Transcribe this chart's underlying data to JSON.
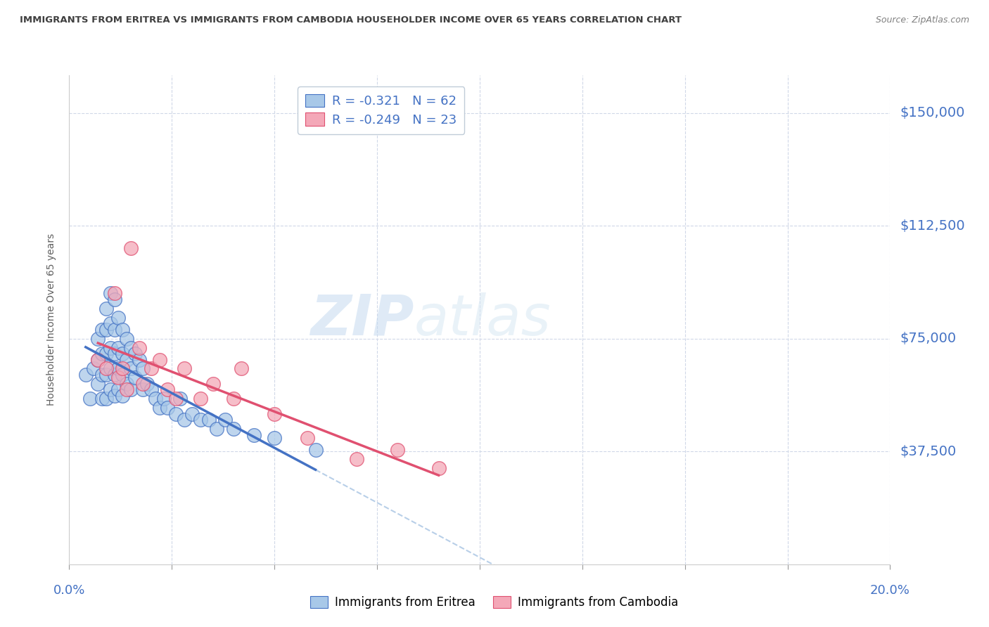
{
  "title": "IMMIGRANTS FROM ERITREA VS IMMIGRANTS FROM CAMBODIA HOUSEHOLDER INCOME OVER 65 YEARS CORRELATION CHART",
  "source": "Source: ZipAtlas.com",
  "ylabel": "Householder Income Over 65 years",
  "ytick_labels": [
    "$37,500",
    "$75,000",
    "$112,500",
    "$150,000"
  ],
  "ytick_values": [
    37500,
    75000,
    112500,
    150000
  ],
  "ymin": 0,
  "ymax": 162500,
  "xmin": 0.0,
  "xmax": 0.2,
  "legend1_text": "R = -0.321   N = 62",
  "legend2_text": "R = -0.249   N = 23",
  "color_eritrea": "#a8c8e8",
  "color_cambodia": "#f4a8b8",
  "color_trend_eritrea": "#4472c4",
  "color_trend_cambodia": "#e05070",
  "color_trend_dashed": "#b8cfe8",
  "watermark": "ZIPatlas",
  "title_color": "#404040",
  "axis_label_color": "#4472c4",
  "eritrea_points_x": [
    0.004,
    0.005,
    0.006,
    0.007,
    0.007,
    0.007,
    0.008,
    0.008,
    0.008,
    0.008,
    0.009,
    0.009,
    0.009,
    0.009,
    0.009,
    0.01,
    0.01,
    0.01,
    0.01,
    0.01,
    0.011,
    0.011,
    0.011,
    0.011,
    0.011,
    0.012,
    0.012,
    0.012,
    0.012,
    0.013,
    0.013,
    0.013,
    0.013,
    0.014,
    0.014,
    0.014,
    0.015,
    0.015,
    0.015,
    0.016,
    0.016,
    0.017,
    0.018,
    0.018,
    0.019,
    0.02,
    0.021,
    0.022,
    0.023,
    0.024,
    0.026,
    0.027,
    0.028,
    0.03,
    0.032,
    0.034,
    0.036,
    0.038,
    0.04,
    0.045,
    0.05,
    0.06
  ],
  "eritrea_points_y": [
    63000,
    55000,
    65000,
    75000,
    68000,
    60000,
    78000,
    70000,
    63000,
    55000,
    85000,
    78000,
    70000,
    63000,
    55000,
    90000,
    80000,
    72000,
    65000,
    58000,
    88000,
    78000,
    70000,
    63000,
    56000,
    82000,
    72000,
    65000,
    58000,
    78000,
    70000,
    63000,
    56000,
    75000,
    68000,
    60000,
    72000,
    65000,
    58000,
    70000,
    62000,
    68000,
    65000,
    58000,
    60000,
    58000,
    55000,
    52000,
    55000,
    52000,
    50000,
    55000,
    48000,
    50000,
    48000,
    48000,
    45000,
    48000,
    45000,
    43000,
    42000,
    38000
  ],
  "cambodia_points_x": [
    0.007,
    0.009,
    0.011,
    0.012,
    0.013,
    0.014,
    0.015,
    0.017,
    0.018,
    0.02,
    0.022,
    0.024,
    0.026,
    0.028,
    0.032,
    0.035,
    0.04,
    0.042,
    0.05,
    0.058,
    0.07,
    0.08,
    0.09
  ],
  "cambodia_points_y": [
    68000,
    65000,
    90000,
    62000,
    65000,
    58000,
    105000,
    72000,
    60000,
    65000,
    68000,
    58000,
    55000,
    65000,
    55000,
    60000,
    55000,
    65000,
    50000,
    42000,
    35000,
    38000,
    32000
  ]
}
